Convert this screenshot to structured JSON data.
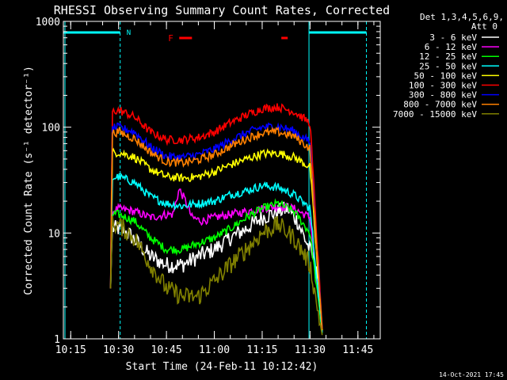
{
  "chart_data": {
    "type": "line",
    "title": "RHESSI Observing Summary Count Rates, Corrected",
    "xlabel": "Start Time (24-Feb-11 10:12:42)",
    "ylabel": "Corrected Count Rate (s⁻¹ detector⁻¹)",
    "y_scale": "log",
    "ylim": [
      1,
      1000
    ],
    "y_ticks": [
      "1",
      "10",
      "100",
      "1000"
    ],
    "x_time_range": [
      "10:12:42",
      "11:52:00"
    ],
    "x_ticks": [
      "10:15",
      "10:30",
      "10:45",
      "11:00",
      "11:15",
      "11:30",
      "11:45"
    ],
    "grid": false,
    "legend_position": "top-right (outside plot)",
    "legend_header": [
      "Det 1,3,4,5,6,9,",
      "Att 0"
    ],
    "timestamp": "14-Oct-2021 17:45",
    "observation_start": "10:27:30",
    "observation_end": "11:34:00",
    "night_marker": {
      "label": "N",
      "start": "10:30:30",
      "end": "11:29:40",
      "color": "#00ffff"
    },
    "day_bars": [
      {
        "start": "10:12:42",
        "end": "10:30:30"
      },
      {
        "start": "11:29:40",
        "end": "11:47:40"
      }
    ],
    "flare_marker": {
      "label": "F",
      "color": "#ff0000",
      "intervals": [
        {
          "start": "10:49:00",
          "end": "10:53:00"
        },
        {
          "start": "11:21:00",
          "end": "11:23:00"
        }
      ]
    },
    "series": [
      {
        "name": "3 - 6 keV",
        "color": "#ffffff",
        "points": [
          [
            "10:27:30",
            3
          ],
          [
            "10:28",
            11
          ],
          [
            "10:30",
            11
          ],
          [
            "10:33",
            10
          ],
          [
            "10:36",
            8
          ],
          [
            "10:40",
            6
          ],
          [
            "10:45",
            5
          ],
          [
            "10:50",
            5
          ],
          [
            "10:55",
            6
          ],
          [
            "11:00",
            7
          ],
          [
            "11:05",
            9
          ],
          [
            "11:10",
            11
          ],
          [
            "11:15",
            14
          ],
          [
            "11:20",
            16
          ],
          [
            "11:23",
            17
          ],
          [
            "11:26",
            13
          ],
          [
            "11:29",
            8
          ],
          [
            "11:32",
            5
          ],
          [
            "11:34",
            1
          ]
        ]
      },
      {
        "name": "6 - 12 keV",
        "color": "#ff00ff",
        "points": [
          [
            "10:27:30",
            3
          ],
          [
            "10:28",
            16
          ],
          [
            "10:30",
            17
          ],
          [
            "10:35",
            16
          ],
          [
            "10:40",
            14
          ],
          [
            "10:45",
            15
          ],
          [
            "10:47",
            15
          ],
          [
            "10:49",
            26
          ],
          [
            "10:51",
            20
          ],
          [
            "10:53",
            14
          ],
          [
            "10:56",
            13
          ],
          [
            "11:00",
            14
          ],
          [
            "11:05",
            15
          ],
          [
            "11:10",
            16
          ],
          [
            "11:15",
            17
          ],
          [
            "11:20",
            18
          ],
          [
            "11:25",
            17
          ],
          [
            "11:30",
            14
          ],
          [
            "11:34",
            1
          ]
        ]
      },
      {
        "name": "12 - 25 keV",
        "color": "#00ff00",
        "points": [
          [
            "10:27:30",
            3
          ],
          [
            "10:28",
            15
          ],
          [
            "10:30",
            15
          ],
          [
            "10:35",
            13
          ],
          [
            "10:40",
            9
          ],
          [
            "10:45",
            7
          ],
          [
            "10:50",
            7
          ],
          [
            "10:55",
            8
          ],
          [
            "11:00",
            9
          ],
          [
            "11:05",
            11
          ],
          [
            "11:10",
            14
          ],
          [
            "11:15",
            17
          ],
          [
            "11:20",
            19
          ],
          [
            "11:25",
            16
          ],
          [
            "11:30",
            10
          ],
          [
            "11:34",
            1
          ]
        ]
      },
      {
        "name": "25 - 50 keV",
        "color": "#00ffff",
        "points": [
          [
            "10:27:30",
            3
          ],
          [
            "10:28",
            33
          ],
          [
            "10:30",
            34
          ],
          [
            "10:35",
            30
          ],
          [
            "10:40",
            22
          ],
          [
            "10:45",
            19
          ],
          [
            "10:50",
            18
          ],
          [
            "10:55",
            19
          ],
          [
            "11:00",
            20
          ],
          [
            "11:05",
            23
          ],
          [
            "11:10",
            25
          ],
          [
            "11:15",
            28
          ],
          [
            "11:20",
            27
          ],
          [
            "11:25",
            23
          ],
          [
            "11:30",
            17
          ],
          [
            "11:34",
            1
          ]
        ]
      },
      {
        "name": "50 - 100 keV",
        "color": "#ffff00",
        "points": [
          [
            "10:27:30",
            3
          ],
          [
            "10:28",
            57
          ],
          [
            "10:30",
            58
          ],
          [
            "10:35",
            52
          ],
          [
            "10:40",
            40
          ],
          [
            "10:45",
            34
          ],
          [
            "10:50",
            33
          ],
          [
            "10:55",
            34
          ],
          [
            "11:00",
            38
          ],
          [
            "11:05",
            44
          ],
          [
            "11:10",
            50
          ],
          [
            "11:15",
            56
          ],
          [
            "11:20",
            57
          ],
          [
            "11:25",
            52
          ],
          [
            "11:30",
            42
          ],
          [
            "11:34",
            1
          ]
        ]
      },
      {
        "name": "100 - 300 keV",
        "color": "#ff0000",
        "points": [
          [
            "10:27:30",
            3
          ],
          [
            "10:28",
            140
          ],
          [
            "10:30",
            145
          ],
          [
            "10:35",
            125
          ],
          [
            "10:40",
            90
          ],
          [
            "10:45",
            76
          ],
          [
            "10:50",
            76
          ],
          [
            "10:55",
            80
          ],
          [
            "11:00",
            90
          ],
          [
            "11:05",
            110
          ],
          [
            "11:10",
            130
          ],
          [
            "11:15",
            150
          ],
          [
            "11:20",
            155
          ],
          [
            "11:25",
            140
          ],
          [
            "11:30",
            110
          ],
          [
            "11:34",
            1
          ]
        ]
      },
      {
        "name": "300 - 800 keV",
        "color": "#0000ff",
        "points": [
          [
            "10:27:30",
            3
          ],
          [
            "10:28",
            98
          ],
          [
            "10:30",
            100
          ],
          [
            "10:35",
            90
          ],
          [
            "10:40",
            65
          ],
          [
            "10:45",
            53
          ],
          [
            "10:50",
            52
          ],
          [
            "10:55",
            55
          ],
          [
            "11:00",
            62
          ],
          [
            "11:05",
            75
          ],
          [
            "11:10",
            88
          ],
          [
            "11:15",
            100
          ],
          [
            "11:20",
            102
          ],
          [
            "11:25",
            92
          ],
          [
            "11:30",
            72
          ],
          [
            "11:34",
            1
          ]
        ]
      },
      {
        "name": "800 - 7000 keV",
        "color": "#ff8000",
        "points": [
          [
            "10:27:30",
            3
          ],
          [
            "10:28",
            88
          ],
          [
            "10:30",
            90
          ],
          [
            "10:35",
            78
          ],
          [
            "10:40",
            58
          ],
          [
            "10:45",
            47
          ],
          [
            "10:50",
            46
          ],
          [
            "10:55",
            49
          ],
          [
            "11:00",
            55
          ],
          [
            "11:05",
            66
          ],
          [
            "11:10",
            78
          ],
          [
            "11:15",
            88
          ],
          [
            "11:20",
            90
          ],
          [
            "11:25",
            82
          ],
          [
            "11:30",
            63
          ],
          [
            "11:34",
            1
          ]
        ]
      },
      {
        "name": "7000 - 15000 keV",
        "color": "#808000",
        "points": [
          [
            "10:27:30",
            3
          ],
          [
            "10:28",
            12
          ],
          [
            "10:30",
            12
          ],
          [
            "10:35",
            9
          ],
          [
            "10:40",
            5
          ],
          [
            "10:45",
            3
          ],
          [
            "10:50",
            2.5
          ],
          [
            "10:55",
            2.5
          ],
          [
            "11:00",
            3.5
          ],
          [
            "11:05",
            5
          ],
          [
            "11:10",
            7
          ],
          [
            "11:15",
            10
          ],
          [
            "11:20",
            12
          ],
          [
            "11:25",
            9
          ],
          [
            "11:30",
            5
          ],
          [
            "11:34",
            1
          ]
        ]
      }
    ]
  }
}
